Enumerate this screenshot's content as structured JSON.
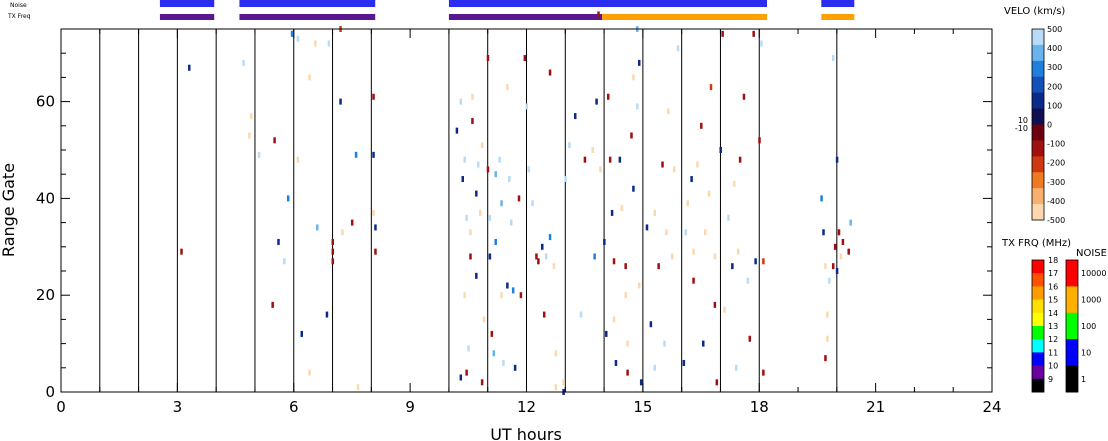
{
  "chart_data": {
    "type": "heatmap",
    "title": "",
    "xlabel": "UT hours",
    "ylabel": "Range Gate",
    "xlim": [
      0,
      24
    ],
    "ylim": [
      0,
      75
    ],
    "x_ticks": [
      0,
      3,
      6,
      9,
      12,
      15,
      18,
      21,
      24
    ],
    "x_tick_labels": [
      "0",
      "3",
      "6",
      "9",
      "12",
      "15",
      "18",
      "21",
      "24"
    ],
    "y_ticks": [
      0,
      20,
      40,
      60
    ],
    "y_tick_labels": [
      "0",
      "20",
      "40",
      "60"
    ],
    "hour_gridlines": [
      1,
      2,
      3,
      4,
      5,
      6,
      7,
      8,
      10,
      11,
      12,
      13,
      14,
      15,
      16,
      17,
      18,
      20
    ],
    "velocity_colorbar": {
      "label": "VELO (km/s)",
      "ticks": [
        "500",
        "400",
        "300",
        "200",
        "100",
        "0",
        "-100",
        "-200",
        "-300",
        "-400",
        "-500"
      ],
      "extra_labels": [
        "10",
        "-10"
      ],
      "colors": [
        "#b8dcf8",
        "#6ab4ee",
        "#1f7fdc",
        "#1450b8",
        "#0c2a8a",
        "#101050",
        "#6a0010",
        "#a01010",
        "#d03810",
        "#f07a20",
        "#f8b070",
        "#fcd8b0"
      ]
    },
    "txfreq_colorbar": {
      "label": "TX FRQ (MHz)",
      "ticks": [
        "18",
        "17",
        "16",
        "15",
        "14",
        "13",
        "12",
        "11",
        "10",
        "9"
      ],
      "colors": [
        "#ff0000",
        "#ff5000",
        "#ff9c00",
        "#ffe000",
        "#ffff00",
        "#00ff00",
        "#00ffff",
        "#0000ff",
        "#6a00a0",
        "#000000"
      ]
    },
    "noise_colorbar": {
      "label": "NOISE",
      "ticks": [
        "10000",
        "1000",
        "100",
        "10",
        "1"
      ],
      "colors": [
        "#ff0000",
        "#ffb000",
        "#00ff00",
        "#0000ff",
        "#000000"
      ]
    },
    "top_bands": {
      "noise_label": "Noise",
      "txfreq_label": "TX Freq",
      "noise_segments": [
        [
          2.55,
          3.95
        ],
        [
          4.6,
          8.1
        ],
        [
          10.0,
          18.2
        ],
        [
          19.6,
          20.45
        ]
      ],
      "txfreq_segments": [
        {
          "x": [
            2.55,
            3.95
          ],
          "color": "#5a1890"
        },
        {
          "x": [
            4.6,
            8.1
          ],
          "color": "#5a1890"
        },
        {
          "x": [
            10.0,
            13.95
          ],
          "color": "#5a1890"
        },
        {
          "x": [
            13.95,
            18.2
          ],
          "color": "#ffa000"
        },
        {
          "x": [
            19.6,
            20.45
          ],
          "color": "#ffa000"
        }
      ]
    },
    "cells": [
      [
        3.3,
        67,
        "#0c2a8a"
      ],
      [
        3.1,
        29,
        "#a01010"
      ],
      [
        4.7,
        68,
        "#b8dcf8"
      ],
      [
        4.9,
        57,
        "#fcd8b0"
      ],
      [
        4.85,
        53,
        "#fcd8b0"
      ],
      [
        5.1,
        49,
        "#b8dcf8"
      ],
      [
        5.45,
        18,
        "#a01010"
      ],
      [
        5.5,
        52,
        "#a01010"
      ],
      [
        5.6,
        31,
        "#0c2a8a"
      ],
      [
        5.75,
        27,
        "#b8dcf8"
      ],
      [
        5.85,
        40,
        "#1f7fdc"
      ],
      [
        6.1,
        48,
        "#fcd8b0"
      ],
      [
        6.2,
        12,
        "#0c2a8a"
      ],
      [
        6.4,
        65,
        "#fcd8b0"
      ],
      [
        6.4,
        4,
        "#fcd8b0"
      ],
      [
        6.55,
        72,
        "#fcd8b0"
      ],
      [
        6.85,
        16,
        "#0c2a8a"
      ],
      [
        6.6,
        34,
        "#6ab4ee"
      ],
      [
        6.9,
        72,
        "#b8dcf8"
      ],
      [
        7.0,
        29,
        "#a01010"
      ],
      [
        7.0,
        27,
        "#a01010"
      ],
      [
        7.2,
        60,
        "#0c2a8a"
      ],
      [
        7.2,
        75,
        "#d03810"
      ],
      [
        7.25,
        33,
        "#fcd8b0"
      ],
      [
        7.5,
        35,
        "#a01010"
      ],
      [
        7.6,
        49,
        "#1f7fdc"
      ],
      [
        7.65,
        1,
        "#fcd8b0"
      ],
      [
        8.05,
        61,
        "#a01010"
      ],
      [
        8.05,
        49,
        "#0c2a8a"
      ],
      [
        8.1,
        34,
        "#0c2a8a"
      ],
      [
        8.1,
        29,
        "#a01010"
      ],
      [
        8.05,
        37,
        "#fcd8b0"
      ],
      [
        6.1,
        73,
        "#b8dcf8"
      ],
      [
        5.95,
        74,
        "#1f7fdc"
      ],
      [
        7.0,
        31,
        "#a01010"
      ],
      [
        10.2,
        54,
        "#0c2a8a"
      ],
      [
        10.3,
        60,
        "#b8dcf8"
      ],
      [
        10.35,
        44,
        "#0c2a8a"
      ],
      [
        10.4,
        48,
        "#b8dcf8"
      ],
      [
        10.45,
        36,
        "#b8dcf8"
      ],
      [
        10.55,
        28,
        "#a01010"
      ],
      [
        10.4,
        20,
        "#fcd8b0"
      ],
      [
        10.5,
        9,
        "#b8dcf8"
      ],
      [
        10.3,
        3,
        "#0c2a8a"
      ],
      [
        10.45,
        4,
        "#a01010"
      ],
      [
        10.6,
        61,
        "#fcd8b0"
      ],
      [
        10.6,
        56,
        "#a01010"
      ],
      [
        10.7,
        41,
        "#0c2a8a"
      ],
      [
        10.75,
        47,
        "#b8dcf8"
      ],
      [
        10.7,
        24,
        "#0c2a8a"
      ],
      [
        10.8,
        37,
        "#fcd8b0"
      ],
      [
        10.85,
        51,
        "#fcd8b0"
      ],
      [
        10.9,
        15,
        "#fcd8b0"
      ],
      [
        10.85,
        2,
        "#a01010"
      ],
      [
        11.0,
        69,
        "#a01010"
      ],
      [
        11.0,
        46,
        "#a01010"
      ],
      [
        11.05,
        36,
        "#b8dcf8"
      ],
      [
        11.05,
        28,
        "#0c2a8a"
      ],
      [
        11.1,
        12,
        "#a01010"
      ],
      [
        11.15,
        8,
        "#6ab4ee"
      ],
      [
        11.2,
        45,
        "#6ab4ee"
      ],
      [
        11.2,
        31,
        "#1f7fdc"
      ],
      [
        11.3,
        48,
        "#b8dcf8"
      ],
      [
        11.35,
        39,
        "#6ab4ee"
      ],
      [
        11.35,
        20,
        "#fcd8b0"
      ],
      [
        11.4,
        6,
        "#b8dcf8"
      ],
      [
        11.5,
        63,
        "#fcd8b0"
      ],
      [
        11.5,
        22,
        "#0c2a8a"
      ],
      [
        11.55,
        44,
        "#b8dcf8"
      ],
      [
        11.6,
        35,
        "#b8dcf8"
      ],
      [
        11.65,
        21,
        "#1f7fdc"
      ],
      [
        11.7,
        5,
        "#0c2a8a"
      ],
      [
        11.8,
        40,
        "#a01010"
      ],
      [
        11.85,
        20,
        "#a01010"
      ],
      [
        11.95,
        69,
        "#a01010"
      ],
      [
        12.0,
        59,
        "#b8dcf8"
      ],
      [
        12.05,
        46,
        "#b8dcf8"
      ],
      [
        12.15,
        39,
        "#b8dcf8"
      ],
      [
        12.25,
        28,
        "#a01010"
      ],
      [
        12.3,
        27,
        "#a01010"
      ],
      [
        12.4,
        30,
        "#0c2a8a"
      ],
      [
        12.45,
        16,
        "#a01010"
      ],
      [
        12.5,
        28,
        "#b8dcf8"
      ],
      [
        12.6,
        32,
        "#1f7fdc"
      ],
      [
        12.6,
        66,
        "#a01010"
      ],
      [
        12.7,
        26,
        "#fcd8b0"
      ],
      [
        12.75,
        8,
        "#fcd8b0"
      ],
      [
        12.75,
        1,
        "#fcd8b0"
      ],
      [
        12.95,
        0,
        "#0c2a8a"
      ],
      [
        13.0,
        44,
        "#b8dcf8"
      ],
      [
        13.1,
        51,
        "#b8dcf8"
      ],
      [
        13.25,
        57,
        "#0c2a8a"
      ],
      [
        13.4,
        16,
        "#b8dcf8"
      ],
      [
        13.5,
        48,
        "#a01010"
      ],
      [
        13.7,
        50,
        "#fcd8b0"
      ],
      [
        13.75,
        28,
        "#1f7fdc"
      ],
      [
        13.8,
        60,
        "#0c2a8a"
      ],
      [
        13.85,
        78,
        "#a01010"
      ],
      [
        13.9,
        46,
        "#fcd8b0"
      ],
      [
        14.0,
        31,
        "#0c2a8a"
      ],
      [
        14.05,
        12,
        "#0c2a8a"
      ],
      [
        14.1,
        61,
        "#a01010"
      ],
      [
        14.15,
        48,
        "#a01010"
      ],
      [
        14.2,
        37,
        "#0c2a8a"
      ],
      [
        14.25,
        27,
        "#a01010"
      ],
      [
        14.25,
        15,
        "#fcd8b0"
      ],
      [
        14.3,
        6,
        "#0c2a8a"
      ],
      [
        14.4,
        48,
        "#0c2a8a"
      ],
      [
        14.45,
        38,
        "#fcd8b0"
      ],
      [
        14.55,
        26,
        "#a01010"
      ],
      [
        14.55,
        20,
        "#fcd8b0"
      ],
      [
        14.6,
        10,
        "#fcd8b0"
      ],
      [
        14.6,
        4,
        "#a01010"
      ],
      [
        14.7,
        53,
        "#a01010"
      ],
      [
        14.75,
        42,
        "#0c2a8a"
      ],
      [
        14.75,
        65,
        "#fcd8b0"
      ],
      [
        14.85,
        59,
        "#b8dcf8"
      ],
      [
        14.9,
        68,
        "#0c2a8a"
      ],
      [
        14.85,
        75,
        "#6ab4ee"
      ],
      [
        14.9,
        22,
        "#fcd8b0"
      ],
      [
        14.95,
        2,
        "#0c2a8a"
      ],
      [
        15.1,
        34,
        "#0c2a8a"
      ],
      [
        15.2,
        14,
        "#0c2a8a"
      ],
      [
        15.3,
        37,
        "#fcd8b0"
      ],
      [
        15.3,
        5,
        "#b8dcf8"
      ],
      [
        15.4,
        26,
        "#a01010"
      ],
      [
        15.5,
        47,
        "#a01010"
      ],
      [
        15.55,
        10,
        "#b8dcf8"
      ],
      [
        15.6,
        33,
        "#fcd8b0"
      ],
      [
        15.65,
        58,
        "#fcd8b0"
      ],
      [
        15.75,
        28,
        "#fcd8b0"
      ],
      [
        15.8,
        46,
        "#fcd8b0"
      ],
      [
        15.9,
        71,
        "#b8dcf8"
      ],
      [
        16.05,
        6,
        "#0c2a8a"
      ],
      [
        16.1,
        33,
        "#b8dcf8"
      ],
      [
        16.15,
        39,
        "#fcd8b0"
      ],
      [
        16.25,
        44,
        "#0c2a8a"
      ],
      [
        16.3,
        29,
        "#fcd8b0"
      ],
      [
        16.3,
        23,
        "#a01010"
      ],
      [
        16.4,
        47,
        "#fcd8b0"
      ],
      [
        16.5,
        55,
        "#a01010"
      ],
      [
        16.55,
        10,
        "#0c2a8a"
      ],
      [
        16.6,
        33,
        "#fcd8b0"
      ],
      [
        16.7,
        41,
        "#fcd8b0"
      ],
      [
        16.75,
        63,
        "#d03810"
      ],
      [
        16.85,
        28,
        "#fcd8b0"
      ],
      [
        16.85,
        18,
        "#a01010"
      ],
      [
        16.9,
        2,
        "#a01010"
      ],
      [
        17.0,
        50,
        "#0c2a8a"
      ],
      [
        17.05,
        74,
        "#a01010"
      ],
      [
        17.1,
        17,
        "#fcd8b0"
      ],
      [
        17.2,
        36,
        "#b8dcf8"
      ],
      [
        17.3,
        26,
        "#0c2a8a"
      ],
      [
        17.35,
        43,
        "#fcd8b0"
      ],
      [
        17.4,
        5,
        "#b8dcf8"
      ],
      [
        17.45,
        29,
        "#fcd8b0"
      ],
      [
        17.5,
        48,
        "#a01010"
      ],
      [
        17.6,
        61,
        "#a01010"
      ],
      [
        17.7,
        23,
        "#b8dcf8"
      ],
      [
        17.75,
        11,
        "#a01010"
      ],
      [
        17.85,
        74,
        "#a01010"
      ],
      [
        17.9,
        27,
        "#0c2a8a"
      ],
      [
        18.0,
        52,
        "#a01010"
      ],
      [
        18.05,
        72,
        "#b8dcf8"
      ],
      [
        18.1,
        27,
        "#d03810"
      ],
      [
        18.1,
        4,
        "#a01010"
      ],
      [
        19.6,
        40,
        "#1f7fdc"
      ],
      [
        19.65,
        33,
        "#0c2a8a"
      ],
      [
        19.7,
        26,
        "#fcd8b0"
      ],
      [
        19.75,
        16,
        "#fcd8b0"
      ],
      [
        19.8,
        23,
        "#b8dcf8"
      ],
      [
        19.9,
        26,
        "#a01010"
      ],
      [
        19.95,
        30,
        "#a01010"
      ],
      [
        20.0,
        25,
        "#0c2a8a"
      ],
      [
        20.05,
        33,
        "#a01010"
      ],
      [
        20.1,
        28,
        "#fcd8b0"
      ],
      [
        20.15,
        31,
        "#a01010"
      ],
      [
        20.3,
        29,
        "#a01010"
      ],
      [
        20.35,
        35,
        "#6ab4ee"
      ],
      [
        19.9,
        69,
        "#b8dcf8"
      ],
      [
        19.7,
        7,
        "#a01010"
      ],
      [
        20.0,
        48,
        "#0c2a8a"
      ],
      [
        19.75,
        11,
        "#fcd8b0"
      ],
      [
        10.55,
        33,
        "#fcd8b0"
      ],
      [
        12.95,
        2,
        "#fcd8b0"
      ]
    ]
  }
}
